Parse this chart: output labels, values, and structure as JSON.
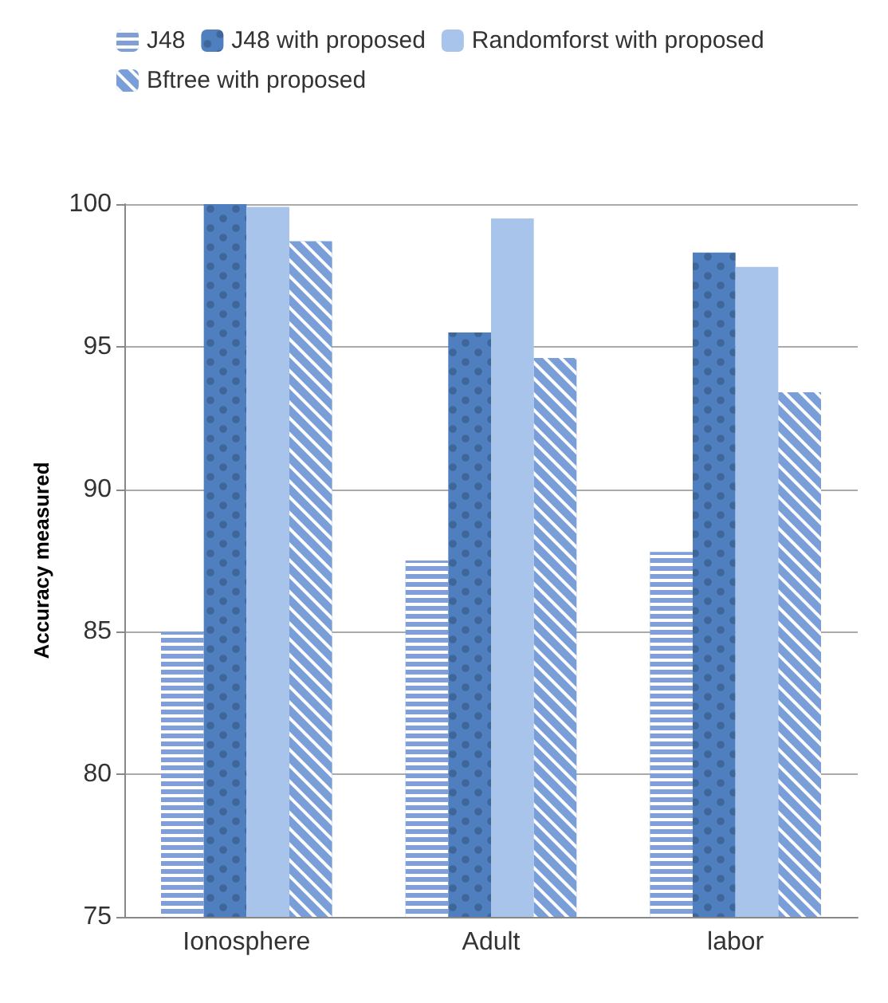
{
  "chart_data": {
    "type": "bar",
    "ylabel": "Accuracy measured",
    "categories": [
      "Ionosphere",
      "Adult",
      "labor"
    ],
    "series": [
      {
        "name": "J48",
        "color": "#7f9fd6",
        "values": [
          85,
          87.5,
          87.8
        ]
      },
      {
        "name": "J48 with proposed",
        "color": "#4f7fbf",
        "values": [
          100,
          95.5,
          98.3
        ]
      },
      {
        "name": "Randomforst with proposed",
        "color": "#a9c4eb",
        "values": [
          99.9,
          99.5,
          97.8
        ]
      },
      {
        "name": "Bftree with proposed",
        "color": "#7a9fd8",
        "values": [
          98.7,
          94.6,
          93.4
        ]
      }
    ],
    "ylim": [
      75,
      100
    ],
    "yticks": [
      75,
      80,
      85,
      90,
      95,
      100
    ],
    "grid": "y",
    "legend": "top"
  }
}
